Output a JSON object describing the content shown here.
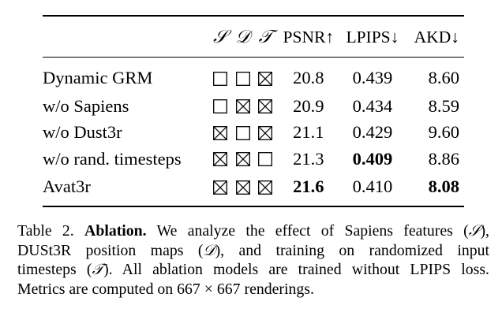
{
  "table": {
    "headers": {
      "method": "",
      "flag_s": "𝒮",
      "flag_d": "𝒟",
      "flag_t": "𝒯",
      "psnr": "PSNR↑",
      "lpips": "LPIPS↓",
      "akd": "AKD↓"
    },
    "rows": [
      {
        "method": "Dynamic GRM",
        "s": false,
        "d": false,
        "t": true,
        "psnr": "20.8",
        "lpips": "0.439",
        "akd": "8.60"
      },
      {
        "method": "w/o Sapiens",
        "s": false,
        "d": true,
        "t": true,
        "psnr": "20.9",
        "lpips": "0.434",
        "akd": "8.59"
      },
      {
        "method": "w/o Dust3r",
        "s": true,
        "d": false,
        "t": true,
        "psnr": "21.1",
        "lpips": "0.429",
        "akd": "9.60"
      },
      {
        "method": "w/o rand. timesteps",
        "s": true,
        "d": true,
        "t": false,
        "psnr": "21.3",
        "lpips": "0.409",
        "akd": "8.86"
      },
      {
        "method": "Avat3r",
        "s": true,
        "d": true,
        "t": true,
        "psnr": "21.6",
        "lpips": "0.410",
        "akd": "8.08"
      }
    ],
    "bold_cells": [
      "rows.3.lpips",
      "rows.4.psnr",
      "rows.4.akd"
    ]
  },
  "caption": {
    "line1_prefix": "Table 2. ",
    "line1_bold": "Ablation.",
    "line1_rest": " We analyze the effect of Sapiens features (",
    "sym_s": "𝒮",
    "line1_end": "),",
    "line2_start": "DUSt3R position maps (",
    "sym_d": "𝒟",
    "line2_end": "), and training on randomized input",
    "line3_start": "timesteps (",
    "sym_t": "𝒯",
    "line3_end": "). All ablation models are trained without LPIPS loss.",
    "line4": "Metrics are computed on 667 × 667 renderings."
  }
}
